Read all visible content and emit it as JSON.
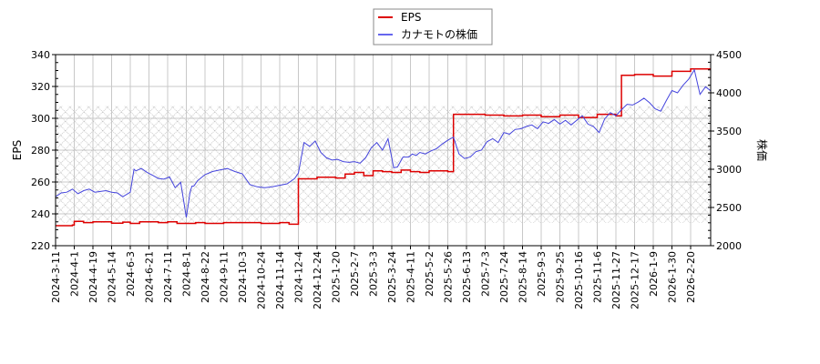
{
  "chart_data": {
    "type": "line",
    "title": "",
    "legend": {
      "position": "top-center",
      "entries": [
        {
          "label": "EPS",
          "color": "#dd0000"
        },
        {
          "label": "カナモトの株価",
          "color": "#4444dd"
        }
      ]
    },
    "xlabel": "",
    "ylabel": "EPS",
    "y2label": "株価",
    "ylim": [
      220,
      340
    ],
    "y2lim": [
      2000,
      4500
    ],
    "yticks": [
      220,
      240,
      260,
      280,
      300,
      320,
      340
    ],
    "y2ticks": [
      2000,
      2500,
      3000,
      3500,
      4000,
      4500
    ],
    "grid": true,
    "hatched_band": {
      "y2_from": 2300,
      "y2_to": 3830
    },
    "xtick_labels": [
      "2024-3-11",
      "2024-4-1",
      "2024-4-19",
      "2024-5-14",
      "2024-6-3",
      "2024-6-21",
      "2024-7-11",
      "2024-8-1",
      "2024-8-22",
      "2024-9-11",
      "2024-10-3",
      "2024-10-24",
      "2024-11-14",
      "2024-12-4",
      "2024-12-24",
      "2025-1-20",
      "2025-2-7",
      "2025-3-3",
      "2025-3-24",
      "2025-4-11",
      "2025-5-2",
      "2025-5-26",
      "2025-6-13",
      "2025-7-3",
      "2025-7-24",
      "2025-8-14",
      "2025-9-3",
      "2025-9-25",
      "2025-10-16",
      "2025-11-6",
      "2025-11-27",
      "2025-12-17",
      "2026-1-9",
      "2026-1-30",
      "2026-2-20"
    ],
    "series": [
      {
        "name": "EPS",
        "axis": "left",
        "color": "#dd0000",
        "x_index": [
          0,
          0.9,
          1.0,
          1.5,
          2.0,
          3.0,
          3.6,
          4.0,
          4.5,
          5.0,
          5.5,
          6.0,
          6.5,
          7.0,
          7.5,
          8.0,
          9.0,
          10.0,
          11.0,
          12.0,
          12.5,
          13.0,
          13.0,
          13.5,
          14.0,
          15.0,
          15.5,
          16.0,
          16.5,
          17.0,
          17.5,
          18.0,
          18.5,
          19.0,
          19.5,
          20.0,
          21.0,
          21.3,
          21.3,
          22.0,
          23.0,
          24.0,
          25.0,
          26.0,
          27.0,
          28.0,
          29.0,
          30.0,
          30.3,
          30.3,
          31.0,
          32.0,
          33.0,
          34.0,
          35.1
        ],
        "values": [
          232.6,
          233.0,
          235.3,
          234.5,
          235.0,
          234.2,
          234.8,
          234.0,
          235.0,
          235.0,
          234.5,
          235.0,
          234.0,
          234.0,
          234.5,
          234.0,
          234.5,
          234.5,
          234.0,
          234.5,
          233.5,
          233.5,
          262.0,
          262.0,
          263.0,
          262.5,
          265.0,
          266.0,
          264.0,
          267.0,
          266.5,
          266.0,
          267.5,
          266.5,
          266.0,
          267.0,
          266.5,
          266.5,
          302.5,
          302.5,
          302.0,
          301.5,
          302.0,
          301.0,
          302.0,
          300.5,
          302.5,
          301.5,
          301.5,
          327.0,
          327.5,
          326.5,
          329.5,
          331.0,
          331.5
        ]
      },
      {
        "name": "カナモトの株価",
        "axis": "right",
        "color": "#4444dd",
        "x_index": [
          0,
          0.3,
          0.6,
          0.9,
          1.2,
          1.5,
          1.8,
          2.1,
          2.4,
          2.7,
          3.0,
          3.3,
          3.6,
          4.0,
          4.2,
          4.3,
          4.6,
          4.9,
          5.2,
          5.5,
          5.8,
          6.1,
          6.4,
          6.7,
          7.0,
          7.2,
          7.3,
          7.4,
          7.6,
          8.0,
          8.4,
          8.8,
          9.2,
          9.6,
          10.0,
          10.4,
          10.8,
          11.2,
          11.6,
          12.0,
          12.4,
          12.8,
          13.0,
          13.3,
          13.6,
          13.9,
          14.2,
          14.5,
          14.8,
          15.1,
          15.4,
          15.7,
          16.0,
          16.3,
          16.6,
          16.9,
          17.2,
          17.5,
          17.8,
          18.1,
          18.3,
          18.6,
          18.9,
          19.1,
          19.3,
          19.5,
          19.8,
          20.1,
          20.4,
          20.7,
          21.0,
          21.3,
          21.6,
          21.9,
          22.2,
          22.5,
          22.8,
          23.1,
          23.4,
          23.7,
          24.0,
          24.3,
          24.6,
          24.9,
          25.2,
          25.5,
          25.8,
          26.1,
          26.4,
          26.7,
          27.0,
          27.3,
          27.6,
          27.9,
          28.2,
          28.5,
          28.8,
          29.1,
          29.4,
          29.7,
          30.0,
          30.3,
          30.6,
          30.9,
          31.2,
          31.5,
          31.8,
          32.1,
          32.4,
          32.7,
          33.0,
          33.3,
          33.6,
          33.9,
          34.2,
          34.5,
          34.8,
          35.1
        ],
        "values": [
          2640,
          2690,
          2700,
          2740,
          2680,
          2720,
          2740,
          2700,
          2710,
          2720,
          2700,
          2690,
          2640,
          2700,
          3000,
          2980,
          3010,
          2960,
          2920,
          2880,
          2870,
          2900,
          2760,
          2830,
          2370,
          2700,
          2780,
          2780,
          2850,
          2930,
          2970,
          2990,
          3010,
          2970,
          2940,
          2800,
          2770,
          2760,
          2770,
          2790,
          2810,
          2880,
          2950,
          3350,
          3300,
          3370,
          3220,
          3150,
          3120,
          3130,
          3100,
          3090,
          3100,
          3080,
          3150,
          3280,
          3350,
          3250,
          3400,
          3020,
          3030,
          3160,
          3160,
          3200,
          3180,
          3220,
          3200,
          3240,
          3270,
          3330,
          3380,
          3420,
          3200,
          3140,
          3160,
          3230,
          3250,
          3360,
          3400,
          3350,
          3480,
          3460,
          3520,
          3530,
          3560,
          3580,
          3530,
          3620,
          3600,
          3650,
          3590,
          3640,
          3580,
          3640,
          3700,
          3590,
          3560,
          3480,
          3660,
          3740,
          3700,
          3780,
          3850,
          3840,
          3880,
          3930,
          3870,
          3790,
          3760,
          3900,
          4030,
          4000,
          4100,
          4180,
          4300,
          3980,
          4080,
          4020
        ]
      }
    ]
  }
}
